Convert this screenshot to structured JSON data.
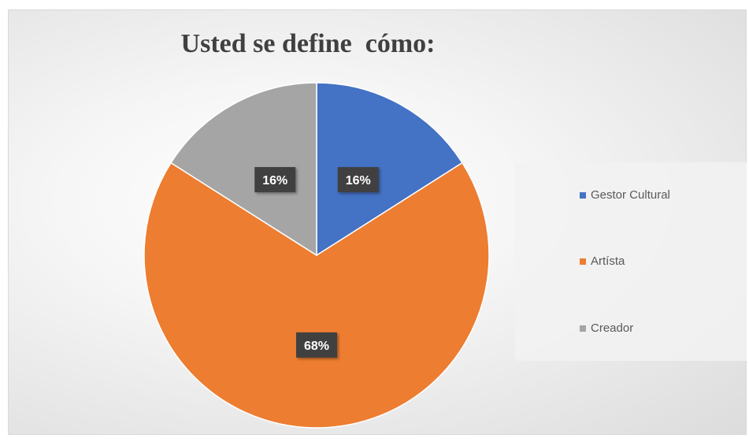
{
  "chart_data": {
    "type": "pie",
    "title": "Usted se define  cómo:",
    "categories": [
      "Gestor Cultural",
      "Artísta",
      "Creador"
    ],
    "values": [
      16,
      68,
      16
    ],
    "data_labels": [
      "16%",
      "68%",
      "16%"
    ],
    "colors": [
      "#4472c4",
      "#ed7d31",
      "#a5a5a5"
    ],
    "legend_position": "right"
  }
}
